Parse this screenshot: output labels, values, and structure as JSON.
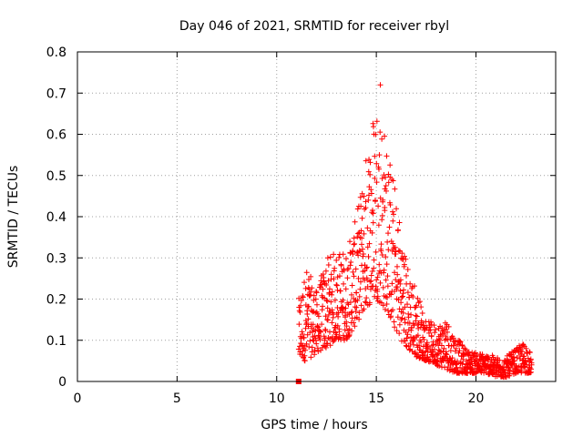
{
  "chart_data": {
    "type": "scatter",
    "title": "Day 046 of 2021, SRMTID for receiver rbyl",
    "xlabel": "GPS time / hours",
    "ylabel": "SRMTID / TECUs",
    "xlim": [
      0,
      24
    ],
    "ylim": [
      0,
      0.8
    ],
    "xticks": [
      0,
      5,
      10,
      15,
      20
    ],
    "yticks": [
      0,
      0.1,
      0.2,
      0.3,
      0.4,
      0.5,
      0.6,
      0.7,
      0.8
    ],
    "xtick_labels": [
      "0",
      "5",
      "10",
      "15",
      "20"
    ],
    "ytick_labels": [
      "0",
      "0.1",
      "0.2",
      "0.3",
      "0.4",
      "0.5",
      "0.6",
      "0.7",
      "0.8"
    ],
    "grid": true,
    "marker": "+",
    "colors": {
      "series": "#ff0000",
      "frame": "#000000",
      "grid": "#a0a0a0"
    },
    "series": [
      {
        "name": "rbyl",
        "envelope": {
          "x": [
            11.1,
            11.5,
            12.0,
            12.5,
            13.0,
            13.5,
            14.0,
            14.5,
            15.0,
            15.5,
            16.0,
            16.5,
            17.0,
            17.5,
            18.0,
            18.5,
            19.0,
            19.5,
            20.0,
            20.5,
            21.0,
            21.5,
            22.0,
            22.5,
            22.8
          ],
          "y_low": [
            0.05,
            0.05,
            0.07,
            0.08,
            0.1,
            0.1,
            0.14,
            0.18,
            0.2,
            0.17,
            0.12,
            0.08,
            0.06,
            0.05,
            0.04,
            0.03,
            0.02,
            0.02,
            0.02,
            0.02,
            0.01,
            0.01,
            0.02,
            0.02,
            0.02
          ],
          "y_high": [
            0.2,
            0.28,
            0.22,
            0.3,
            0.32,
            0.32,
            0.4,
            0.56,
            0.72,
            0.6,
            0.46,
            0.3,
            0.23,
            0.15,
            0.14,
            0.16,
            0.11,
            0.08,
            0.07,
            0.07,
            0.06,
            0.06,
            0.08,
            0.1,
            0.06
          ]
        },
        "peak": {
          "x": 15.2,
          "y": 0.72
        },
        "outlier": {
          "x": 11.1,
          "y": 0.0
        }
      }
    ]
  }
}
